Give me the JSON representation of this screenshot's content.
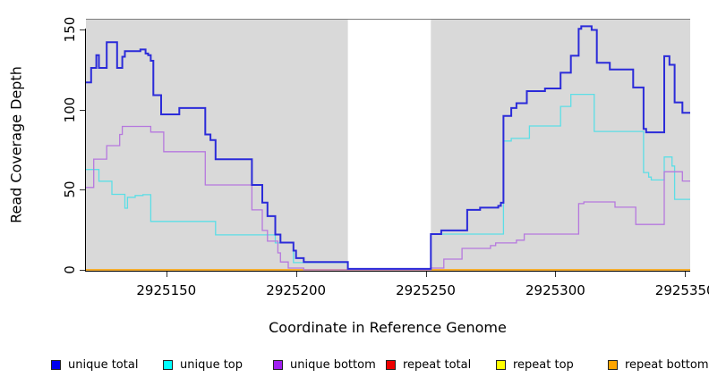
{
  "axes": {
    "x": {
      "label": "Coordinate in Reference Genome",
      "ticks": [
        "2925150",
        "2925200",
        "2925250",
        "2925300",
        "2925350"
      ]
    },
    "y": {
      "label": "Read Coverage Depth",
      "ticks": [
        "0",
        "50",
        "100",
        "150"
      ]
    }
  },
  "legend": {
    "items": [
      {
        "label": "unique total",
        "color": "#0000EE"
      },
      {
        "label": "unique top",
        "color": "#00FFFF"
      },
      {
        "label": "unique bottom",
        "color": "#A020F0"
      },
      {
        "label": "repeat total",
        "color": "#EE0000"
      },
      {
        "label": "repeat top",
        "color": "#FFFF00"
      },
      {
        "label": "repeat bottom",
        "color": "#FFA500"
      }
    ]
  },
  "chart_data": {
    "type": "line",
    "subtype": "step-after",
    "title": "",
    "xlabel": "Coordinate in Reference Genome",
    "ylabel": "Read Coverage Depth",
    "xlim": [
      2925119,
      2925352
    ],
    "ylim": [
      0,
      150
    ],
    "x_ticks": [
      2925150,
      2925200,
      2925250,
      2925300,
      2925350
    ],
    "y_ticks": [
      0,
      50,
      100,
      150
    ],
    "grid": false,
    "legend_position": "bottom",
    "plot_background": "#FFFFFF",
    "highlight_regions": [
      {
        "x0": 2925119,
        "x1": 2925220,
        "color": "#D9D9D9"
      },
      {
        "x0": 2925252,
        "x1": 2925352,
        "color": "#D9D9D9"
      }
    ],
    "gap_region": {
      "x0": 2925220,
      "x1": 2925252,
      "color": "#FFFFFF"
    },
    "series": [
      {
        "name": "unique total",
        "color": "#2B2BD9",
        "width": 2,
        "points": [
          [
            2925119,
            117
          ],
          [
            2925121,
            126
          ],
          [
            2925123,
            134
          ],
          [
            2925124,
            126
          ],
          [
            2925127,
            142
          ],
          [
            2925131,
            126
          ],
          [
            2925133,
            133
          ],
          [
            2925134,
            136.5
          ],
          [
            2925140,
            137.5
          ],
          [
            2925142,
            135
          ],
          [
            2925143,
            134
          ],
          [
            2925144,
            130.5
          ],
          [
            2925145,
            109
          ],
          [
            2925148,
            97
          ],
          [
            2925155,
            101
          ],
          [
            2925165,
            84.5
          ],
          [
            2925167,
            81
          ],
          [
            2925169,
            69
          ],
          [
            2925183,
            53
          ],
          [
            2925187,
            42
          ],
          [
            2925189,
            33.5
          ],
          [
            2925192,
            22
          ],
          [
            2925194,
            17
          ],
          [
            2925199,
            12
          ],
          [
            2925200,
            7.3
          ],
          [
            2925203,
            4.9
          ],
          [
            2925220,
            0.6
          ],
          [
            2925252,
            22.3
          ],
          [
            2925256,
            24.6
          ],
          [
            2925266,
            37.4
          ],
          [
            2925271,
            38.8
          ],
          [
            2925278,
            39.9
          ],
          [
            2925279,
            41.9
          ],
          [
            2925280,
            96
          ],
          [
            2925283,
            101
          ],
          [
            2925285,
            104
          ],
          [
            2925289,
            111.5
          ],
          [
            2925296,
            113.2
          ],
          [
            2925302,
            123
          ],
          [
            2925306,
            133.6
          ],
          [
            2925309,
            150.4
          ],
          [
            2925310,
            152
          ],
          [
            2925314,
            149.7
          ],
          [
            2925316,
            129.2
          ],
          [
            2925321,
            125
          ],
          [
            2925330,
            113.8
          ],
          [
            2925334,
            88
          ],
          [
            2925335,
            85.8
          ],
          [
            2925342,
            133.3
          ],
          [
            2925344,
            128
          ],
          [
            2925346,
            104.5
          ],
          [
            2925349,
            98
          ],
          [
            2925352,
            98
          ]
        ]
      },
      {
        "name": "unique top",
        "color": "#5CDEE6",
        "width": 1.3,
        "points": [
          [
            2925119,
            62.6
          ],
          [
            2925124,
            55.3
          ],
          [
            2925129,
            47.1
          ],
          [
            2925134,
            38.5
          ],
          [
            2925135,
            45.3
          ],
          [
            2925138,
            46.4
          ],
          [
            2925141,
            46.9
          ],
          [
            2925144,
            30.2
          ],
          [
            2925169,
            21.8
          ],
          [
            2925192,
            16.8
          ],
          [
            2925199,
            4.5
          ],
          [
            2925220,
            0.3
          ],
          [
            2925252,
            22.3
          ],
          [
            2925280,
            80.4
          ],
          [
            2925283,
            82
          ],
          [
            2925290,
            89.8
          ],
          [
            2925302,
            102
          ],
          [
            2925306,
            109.5
          ],
          [
            2925315,
            86.4
          ],
          [
            2925334,
            60.7
          ],
          [
            2925336,
            57.9
          ],
          [
            2925337,
            56.1
          ],
          [
            2925342,
            70.4
          ],
          [
            2925345,
            64.8
          ],
          [
            2925346,
            44
          ],
          [
            2925352,
            44
          ]
        ]
      },
      {
        "name": "unique bottom",
        "color": "#B678DE",
        "width": 1.3,
        "points": [
          [
            2925119,
            51.4
          ],
          [
            2925122,
            69.1
          ],
          [
            2925127,
            77.5
          ],
          [
            2925132,
            84.5
          ],
          [
            2925133,
            89.5
          ],
          [
            2925144,
            86
          ],
          [
            2925149,
            73.7
          ],
          [
            2925165,
            53
          ],
          [
            2925183,
            37.4
          ],
          [
            2925187,
            24.6
          ],
          [
            2925189,
            17.9
          ],
          [
            2925193,
            10.6
          ],
          [
            2925194,
            4.9
          ],
          [
            2925197,
            1.1
          ],
          [
            2925203,
            0
          ],
          [
            2925252,
            1.1
          ],
          [
            2925257,
            6.7
          ],
          [
            2925264,
            13.4
          ],
          [
            2925275,
            15.1
          ],
          [
            2925277,
            16.8
          ],
          [
            2925285,
            18.5
          ],
          [
            2925288,
            22.3
          ],
          [
            2925309,
            41.3
          ],
          [
            2925311,
            42.4
          ],
          [
            2925323,
            39.1
          ],
          [
            2925331,
            28.3
          ],
          [
            2925342,
            61.2
          ],
          [
            2925349,
            55.4
          ],
          [
            2925352,
            55.4
          ]
        ]
      },
      {
        "name": "repeat total",
        "color": "#DE0000",
        "width": 1.3,
        "points": [
          [
            2925119,
            0
          ],
          [
            2925352,
            0
          ]
        ]
      },
      {
        "name": "repeat top",
        "color": "#FFFF00",
        "width": 1.3,
        "points": [
          [
            2925119,
            0
          ],
          [
            2925352,
            0
          ]
        ]
      },
      {
        "name": "repeat bottom",
        "color": "#FFA500",
        "width": 1.3,
        "points": [
          [
            2925119,
            0
          ],
          [
            2925352,
            0
          ]
        ]
      }
    ]
  }
}
